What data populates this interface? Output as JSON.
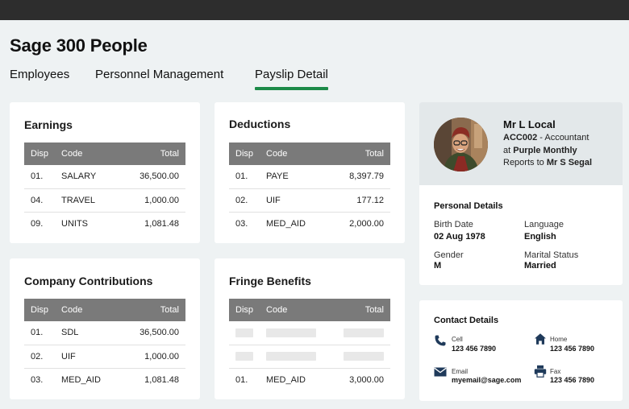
{
  "app": {
    "title": "Sage 300 People"
  },
  "tabs": [
    {
      "label": "Employees"
    },
    {
      "label": "Personnel Management"
    },
    {
      "label": "Payslip Detail"
    }
  ],
  "columns": {
    "disp": "Disp",
    "code": "Code",
    "total": "Total"
  },
  "earnings": {
    "title": "Earnings",
    "rows": [
      {
        "disp": "01.",
        "code": "SALARY",
        "total": "36,500.00"
      },
      {
        "disp": "04.",
        "code": "TRAVEL",
        "total": "1,000.00"
      },
      {
        "disp": "09.",
        "code": "UNITS",
        "total": "1,081.48"
      }
    ]
  },
  "deductions": {
    "title": "Deductions",
    "rows": [
      {
        "disp": "01.",
        "code": "PAYE",
        "total": "8,397.79"
      },
      {
        "disp": "02.",
        "code": "UIF",
        "total": "177.12"
      },
      {
        "disp": "03.",
        "code": "MED_AID",
        "total": "2,000.00"
      }
    ]
  },
  "company_contributions": {
    "title": "Company Contributions",
    "rows": [
      {
        "disp": "01.",
        "code": "SDL",
        "total": "36,500.00"
      },
      {
        "disp": "02.",
        "code": "UIF",
        "total": "1,000.00"
      },
      {
        "disp": "03.",
        "code": "MED_AID",
        "total": "1,081.48"
      }
    ]
  },
  "fringe_benefits": {
    "title": "Fringe Benefits",
    "rows": [
      {
        "disp": "01.",
        "code": "MED_AID",
        "total": "3,000.00"
      }
    ]
  },
  "profile": {
    "name": "Mr L Local",
    "account": "ACC002",
    "role_text": " - Accountant",
    "at_text": "at ",
    "company": "Purple Monthly",
    "reports_text": "Reports to ",
    "manager": "Mr S Segal"
  },
  "personal_details": {
    "title": "Personal Details",
    "birth_date_label": "Birth Date",
    "birth_date": "02 Aug 1978",
    "language_label": "Language",
    "language": "English",
    "gender_label": "Gender",
    "gender": "M",
    "marital_label": "Marital Status",
    "marital": "Married"
  },
  "contact_details": {
    "title": "Contact Details",
    "cell_label": "Cell",
    "cell": "123 456 7890",
    "home_label": "Home",
    "home": "123 456 7890",
    "email_label": "Email",
    "email": "myemail@sage.com",
    "fax_label": "Fax",
    "fax": "123 456 7890"
  },
  "icons": {
    "cell": "phone-icon",
    "home": "house-icon",
    "email": "envelope-icon",
    "fax": "printer-icon"
  },
  "colors": {
    "accent": "#1c8a48",
    "topbar": "#2d2d2d",
    "table_header": "#7a7a7a",
    "contact_icon": "#1f3a5a"
  }
}
